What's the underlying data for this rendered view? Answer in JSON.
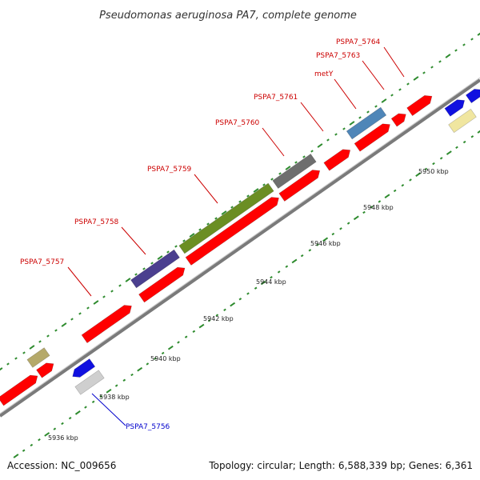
{
  "title": "Pseudomonas aeruginosa PA7, complete genome",
  "footer": {
    "accession": "Accession: NC_009656",
    "summary": "Topology: circular; Length: 6,588,339 bp; Genes: 6,361"
  },
  "colors": {
    "backbone": "#888888",
    "tick": "#2e8b2e",
    "forward_label": "#cc0000",
    "reverse_label": "#0000cc",
    "cds": "#ff0000"
  },
  "scale_labels": [
    "5936 kbp",
    "5938 kbp",
    "5940 kbp",
    "5942 kbp",
    "5944 kbp",
    "5946 kbp",
    "5948 kbp",
    "5950 kbp"
  ],
  "genes": [
    {
      "name": "PSPA7_5757",
      "color": "#cc0000"
    },
    {
      "name": "PSPA7_5758",
      "color": "#cc0000"
    },
    {
      "name": "PSPA7_5759",
      "color": "#cc0000"
    },
    {
      "name": "PSPA7_5760",
      "color": "#cc0000"
    },
    {
      "name": "PSPA7_5761",
      "color": "#cc0000"
    },
    {
      "name": "metY",
      "color": "#cc0000"
    },
    {
      "name": "PSPA7_5763",
      "color": "#cc0000"
    },
    {
      "name": "PSPA7_5764",
      "color": "#cc0000"
    },
    {
      "name": "PSPA7_5756",
      "color": "#0000cc"
    }
  ],
  "feature_colors": {
    "red": "#ff0000",
    "blue": "#1010e0",
    "purple": "#4b3f8f",
    "olive": "#6b8e23",
    "gray": "#6e6e6e",
    "steel": "#4f86b8",
    "khaki": "#b5a96a",
    "pale_yellow": "#f0e6a0",
    "light_gray": "#cfcfcf"
  }
}
